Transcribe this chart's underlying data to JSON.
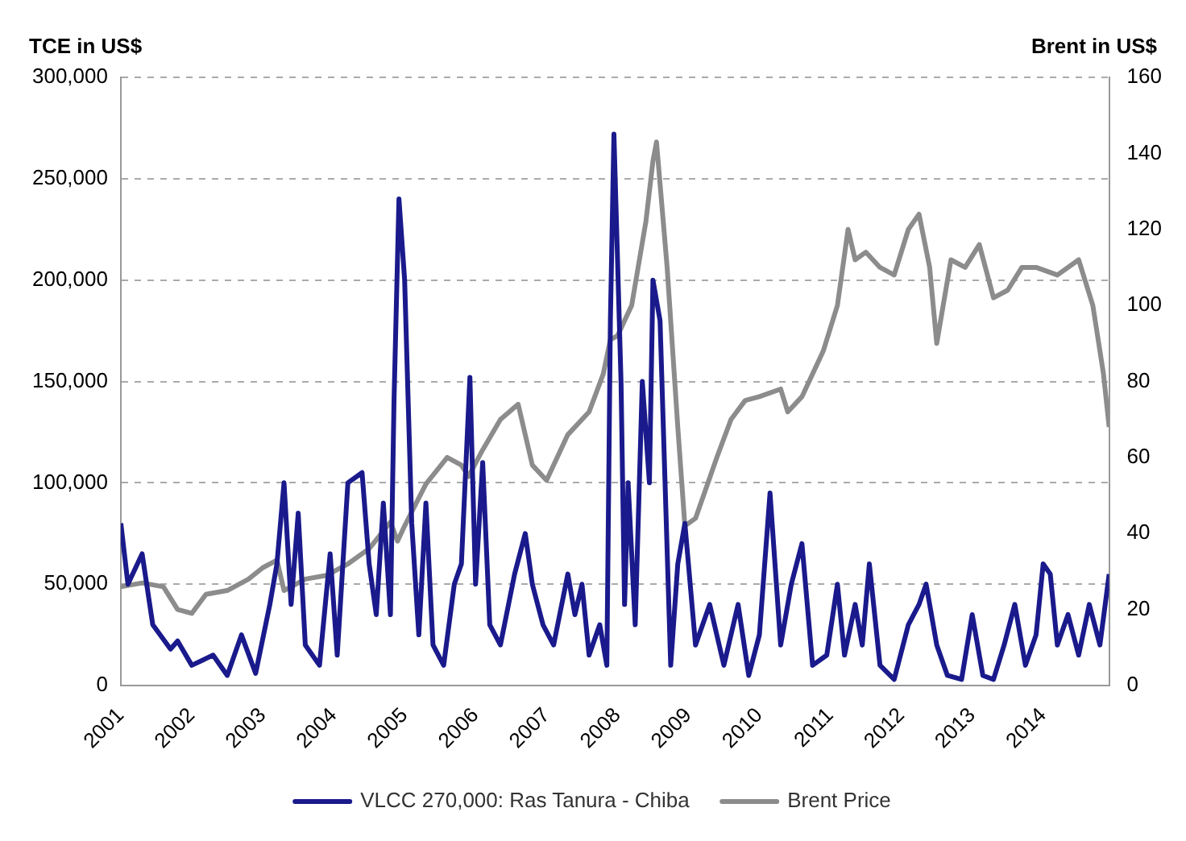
{
  "chart_data": {
    "type": "line",
    "ylabel": "TCE in US$",
    "y2label": "Brent in US$",
    "xlim": [
      2001,
      2014.93
    ],
    "xticks": [
      2001,
      2002,
      2003,
      2004,
      2005,
      2006,
      2007,
      2008,
      2009,
      2010,
      2011,
      2012,
      2013,
      2014
    ],
    "ylim": [
      0,
      300000
    ],
    "yticks": [
      0,
      {
        "value": 50000,
        "label": "50,000"
      },
      {
        "value": 100000,
        "label": "100,000"
      },
      {
        "value": 150000,
        "label": "150,000"
      },
      {
        "value": 200000,
        "label": "200,000"
      },
      {
        "value": 250000,
        "label": "250,000"
      },
      {
        "value": 300000,
        "label": "300,000"
      }
    ],
    "y2lim": [
      0,
      160
    ],
    "y2ticks": [
      0,
      20,
      40,
      60,
      80,
      100,
      120,
      140,
      160
    ],
    "grid": "y",
    "legend": "bottom",
    "marker": "none",
    "line_style": "solid",
    "series": [
      {
        "name": "VLCC 270,000: Ras Tanura - Chiba",
        "color": "#1a1a8c",
        "x": [
          2001.0,
          2001.1,
          2001.3,
          2001.45,
          2001.7,
          2001.8,
          2002.0,
          2002.3,
          2002.5,
          2002.7,
          2002.9,
          2003.1,
          2003.2,
          2003.3,
          2003.4,
          2003.5,
          2003.6,
          2003.8,
          2003.95,
          2004.05,
          2004.2,
          2004.4,
          2004.5,
          2004.6,
          2004.7,
          2004.8,
          2004.85,
          2004.92,
          2005.0,
          2005.1,
          2005.2,
          2005.3,
          2005.4,
          2005.55,
          2005.7,
          2005.8,
          2005.92,
          2006.0,
          2006.1,
          2006.2,
          2006.35,
          2006.55,
          2006.7,
          2006.8,
          2006.95,
          2007.1,
          2007.3,
          2007.4,
          2007.5,
          2007.6,
          2007.75,
          2007.85,
          2007.9,
          2007.95,
          2008.05,
          2008.1,
          2008.15,
          2008.25,
          2008.35,
          2008.45,
          2008.5,
          2008.6,
          2008.75,
          2008.85,
          2008.95,
          2009.1,
          2009.3,
          2009.5,
          2009.7,
          2009.85,
          2010.0,
          2010.15,
          2010.3,
          2010.45,
          2010.6,
          2010.75,
          2010.95,
          2011.1,
          2011.2,
          2011.35,
          2011.45,
          2011.55,
          2011.7,
          2011.9,
          2012.1,
          2012.25,
          2012.35,
          2012.5,
          2012.65,
          2012.85,
          2013.0,
          2013.15,
          2013.3,
          2013.45,
          2013.6,
          2013.75,
          2013.9,
          2014.0,
          2014.1,
          2014.2,
          2014.35,
          2014.5,
          2014.65,
          2014.8,
          2014.93
        ],
        "values": [
          80000,
          50000,
          65000,
          30000,
          18000,
          22000,
          10000,
          15000,
          5000,
          25000,
          6000,
          40000,
          60000,
          100000,
          40000,
          85000,
          20000,
          10000,
          65000,
          15000,
          100000,
          105000,
          60000,
          35000,
          90000,
          35000,
          140000,
          240000,
          200000,
          80000,
          25000,
          90000,
          20000,
          10000,
          50000,
          60000,
          152000,
          50000,
          110000,
          30000,
          20000,
          55000,
          75000,
          50000,
          30000,
          20000,
          55000,
          35000,
          50000,
          15000,
          30000,
          10000,
          180000,
          272000,
          150000,
          40000,
          100000,
          30000,
          150000,
          100000,
          200000,
          180000,
          10000,
          60000,
          80000,
          20000,
          40000,
          10000,
          40000,
          5000,
          25000,
          95000,
          20000,
          50000,
          70000,
          10000,
          15000,
          50000,
          15000,
          40000,
          20000,
          60000,
          10000,
          3000,
          30000,
          40000,
          50000,
          20000,
          5000,
          3000,
          35000,
          5000,
          3000,
          20000,
          40000,
          10000,
          25000,
          60000,
          55000,
          20000,
          35000,
          15000,
          40000,
          20000,
          55000
        ]
      },
      {
        "name": "Brent Price",
        "color": "#8c8c8c",
        "axis": "y2",
        "x": [
          2001.0,
          2001.3,
          2001.6,
          2001.8,
          2002.0,
          2002.2,
          2002.5,
          2002.8,
          2003.0,
          2003.2,
          2003.3,
          2003.6,
          2003.9,
          2004.2,
          2004.5,
          2004.8,
          2004.9,
          2005.0,
          2005.3,
          2005.6,
          2005.8,
          2005.9,
          2006.1,
          2006.35,
          2006.6,
          2006.8,
          2007.0,
          2007.3,
          2007.6,
          2007.8,
          2007.9,
          2008.0,
          2008.2,
          2008.4,
          2008.5,
          2008.55,
          2008.7,
          2008.85,
          2008.95,
          2009.1,
          2009.4,
          2009.6,
          2009.8,
          2010.0,
          2010.3,
          2010.4,
          2010.6,
          2010.9,
          2011.1,
          2011.25,
          2011.35,
          2011.5,
          2011.7,
          2011.9,
          2012.1,
          2012.25,
          2012.4,
          2012.5,
          2012.7,
          2012.9,
          2013.1,
          2013.3,
          2013.5,
          2013.7,
          2013.9,
          2014.2,
          2014.5,
          2014.7,
          2014.85,
          2014.93
        ],
        "values": [
          26,
          27,
          26,
          20,
          19,
          24,
          25,
          28,
          31,
          33,
          25,
          28,
          29,
          32,
          36,
          43,
          38,
          42,
          53,
          60,
          58,
          55,
          62,
          70,
          74,
          58,
          54,
          66,
          72,
          82,
          91,
          92,
          100,
          122,
          138,
          143,
          110,
          68,
          42,
          44,
          60,
          70,
          75,
          76,
          78,
          72,
          76,
          88,
          100,
          120,
          112,
          114,
          110,
          108,
          120,
          124,
          110,
          90,
          112,
          110,
          116,
          102,
          104,
          110,
          110,
          108,
          112,
          100,
          82,
          68
        ]
      }
    ]
  }
}
